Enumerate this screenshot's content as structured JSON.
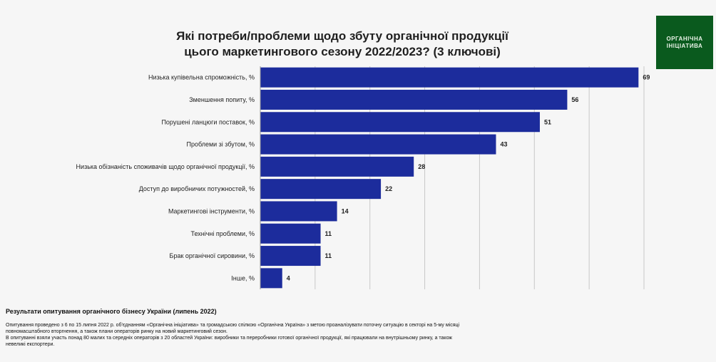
{
  "logo": {
    "line1": "ОРГАНІЧНА",
    "line2": "ІНІЦІАТИВА",
    "bg": "#0a5a1e"
  },
  "chart_data": {
    "type": "bar",
    "orientation": "horizontal",
    "title_line1": "Які потреби/проблеми щодо збуту органічної продукції",
    "title_line2": "цього маркетингового сезону 2022/2023? (3 ключові)",
    "categories": [
      "Низька купівельна спроможність, %",
      "Зменшення попиту, %",
      "Порушені ланцюги поставок, %",
      "Проблеми зі збутом, %",
      "Низька обізнаність споживачів щодо органічної продукції, %",
      "Доступ до виробничих потужностей, %",
      "Маркетингові інструменти, %",
      "Технічні проблеми, %",
      "Брак органічної сировини, %",
      "Інше, %"
    ],
    "values": [
      69,
      56,
      51,
      43,
      28,
      22,
      14,
      11,
      11,
      4
    ],
    "xlim": [
      0,
      70
    ],
    "grid": true,
    "bar_color": "#1c2c9c",
    "grid_color": "#c8c8c8"
  },
  "footer": {
    "heading": "Результати опитування органічного бізнесу України (липень 2022)",
    "line1": "Опитування проведено з 6 по 15 липня 2022 р. об'єднанням «Органічна ініціатива» та громадською спілкою «Органічна Україна» з метою проаналізувати поточну ситуацію в секторі на 5-му місяці",
    "line2": "повномасштабного вторгнення, а також плани операторів ринку на новий маркетинговий сезон.",
    "line3": "В опитуванні взяли участь понад 80 малих та середніх операторів з 20 областей України: виробники та переробники готової органічної продукції, які працювали на внутрішньому ринку, а також",
    "line4": "невеликі експортери."
  }
}
